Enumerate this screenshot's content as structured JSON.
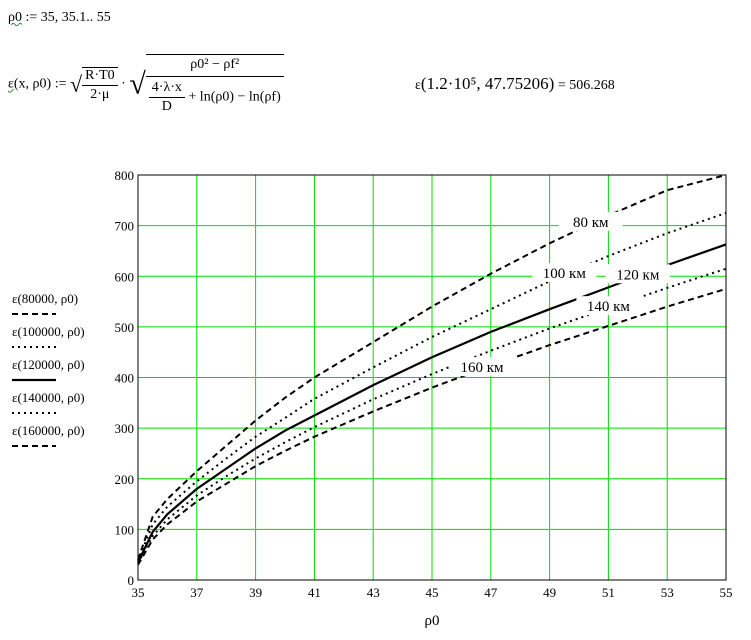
{
  "range_def": {
    "var": "ρ0",
    "rhs": ":= 35, 35.1.. 55"
  },
  "function_def": {
    "lhs_name": "ε",
    "lhs_args": "(x, ρ0)",
    "assign": ":=",
    "sqrt1_num": "R·T0",
    "sqrt1_den": "2·μ",
    "dot": "·",
    "inner_num": "ρ0² − ρf²",
    "inner_den_frac_num": "4·λ·x",
    "inner_den_frac_den": "D",
    "inner_den_rest": "+ ln(ρ0) − ln(ρf)"
  },
  "evaluation": {
    "name": "ε",
    "args": "(1.2·10⁵, 47.75206)",
    "result": "= 506.268"
  },
  "chart_data": {
    "type": "line",
    "xlabel": "ρ0",
    "ylabel": "",
    "xlim": [
      35,
      55
    ],
    "ylim": [
      0,
      800
    ],
    "x_ticks": [
      "35",
      "37",
      "39",
      "41",
      "43",
      "45",
      "47",
      "49",
      "51",
      "53",
      "55"
    ],
    "y_ticks": [
      "0",
      "100",
      "200",
      "300",
      "400",
      "500",
      "600",
      "700",
      "800"
    ],
    "grid": true,
    "grid_color": "#00dd00",
    "line_color": "#000000",
    "legend_position": "left",
    "series": [
      {
        "name": "ε(80000, ρ0)",
        "label": "80 км",
        "style": "dashed",
        "x": [
          35,
          35.5,
          36,
          37,
          38,
          39,
          40,
          41,
          43,
          45,
          47,
          49,
          51,
          53,
          55
        ],
        "y": [
          40,
          125,
          160,
          215,
          265,
          315,
          360,
          400,
          470,
          540,
          605,
          665,
          720,
          770,
          800
        ]
      },
      {
        "name": "ε(100000, ρ0)",
        "label": "100 км",
        "style": "dotted",
        "x": [
          35,
          35.5,
          36,
          37,
          38,
          39,
          40,
          41,
          43,
          45,
          47,
          49,
          51,
          53,
          55
        ],
        "y": [
          38,
          110,
          145,
          195,
          240,
          283,
          320,
          358,
          420,
          480,
          535,
          590,
          640,
          685,
          725
        ]
      },
      {
        "name": "ε(120000, ρ0)",
        "label": "120 км",
        "style": "solid",
        "x": [
          35,
          35.5,
          36,
          37,
          38,
          39,
          40,
          41,
          43,
          45,
          47,
          49,
          51,
          53,
          55
        ],
        "y": [
          35,
          95,
          130,
          180,
          220,
          260,
          295,
          325,
          385,
          440,
          490,
          535,
          578,
          622,
          663
        ]
      },
      {
        "name": "ε(140000, ρ0)",
        "label": "140 км",
        "style": "dotted",
        "x": [
          35,
          35.5,
          36,
          37,
          38,
          39,
          40,
          41,
          43,
          45,
          47,
          49,
          51,
          53,
          55
        ],
        "y": [
          33,
          87,
          120,
          167,
          205,
          240,
          272,
          302,
          357,
          407,
          453,
          497,
          537,
          577,
          615
        ]
      },
      {
        "name": "ε(160000, ρ0)",
        "label": "160 км",
        "style": "dashed",
        "x": [
          35,
          35.5,
          36,
          37,
          38,
          39,
          40,
          41,
          43,
          45,
          47,
          49,
          51,
          53,
          55
        ],
        "y": [
          30,
          80,
          110,
          155,
          190,
          225,
          255,
          283,
          333,
          380,
          423,
          464,
          502,
          540,
          575
        ]
      }
    ]
  }
}
